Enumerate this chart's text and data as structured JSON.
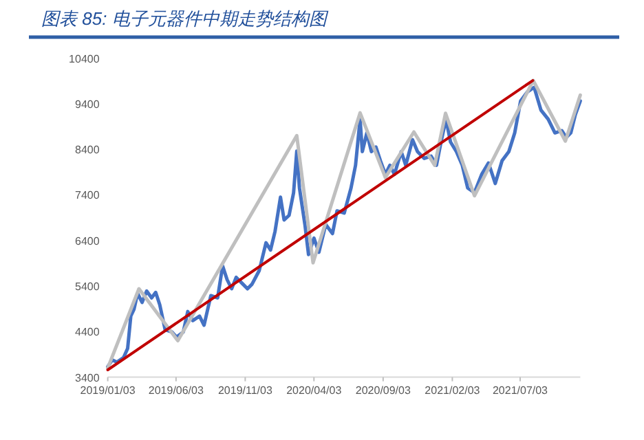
{
  "chart_data": {
    "type": "line",
    "title": "图表 85:  电子元器件中期走势结构图",
    "xlim": [
      "2019-01-03",
      "2021-11-13"
    ],
    "xticks": [
      {
        "value": "2019-01-03",
        "label": "2019/01/03"
      },
      {
        "value": "2019-06-03",
        "label": "2019/06/03"
      },
      {
        "value": "2019-11-03",
        "label": "2019/11/03"
      },
      {
        "value": "2020-04-03",
        "label": "2020/04/03"
      },
      {
        "value": "2020-09-03",
        "label": "2020/09/03"
      },
      {
        "value": "2021-02-03",
        "label": "2021/02/03"
      },
      {
        "value": "2021-07-03",
        "label": "2021/07/03"
      }
    ],
    "ylim": [
      3400,
      10400
    ],
    "yticks": [
      3400,
      4400,
      5400,
      6400,
      7400,
      8400,
      9400,
      10400
    ],
    "marker": "none",
    "line_style": "solid",
    "series": [
      {
        "color": "#4472c4",
        "x": [
          "2019-01-03",
          "2019-01-13",
          "2019-01-23",
          "2019-02-07",
          "2019-02-16",
          "2019-02-23",
          "2019-03-02",
          "2019-03-10",
          "2019-03-20",
          "2019-03-30",
          "2019-04-10",
          "2019-04-19",
          "2019-04-28",
          "2019-05-10",
          "2019-05-25",
          "2019-06-04",
          "2019-06-19",
          "2019-06-29",
          "2019-07-10",
          "2019-07-25",
          "2019-08-04",
          "2019-08-19",
          "2019-09-03",
          "2019-09-14",
          "2019-09-24",
          "2019-10-04",
          "2019-10-14",
          "2019-10-29",
          "2019-11-08",
          "2019-11-18",
          "2019-12-04",
          "2019-12-19",
          "2019-12-29",
          "2020-01-08",
          "2020-01-20",
          "2020-01-28",
          "2020-02-08",
          "2020-02-18",
          "2020-02-25",
          "2020-03-02",
          "2020-03-14",
          "2020-03-22",
          "2020-04-03",
          "2020-04-14",
          "2020-04-29",
          "2020-05-14",
          "2020-05-24",
          "2020-06-09",
          "2020-06-13",
          "2020-06-24",
          "2020-07-04",
          "2020-07-14",
          "2020-07-19",
          "2020-07-29",
          "2020-08-08",
          "2020-08-18",
          "2020-08-28",
          "2020-09-08",
          "2020-09-18",
          "2020-09-28",
          "2020-10-13",
          "2020-10-23",
          "2020-11-07",
          "2020-11-18",
          "2020-12-03",
          "2020-12-18",
          "2020-12-30",
          "2021-01-09",
          "2021-01-20",
          "2021-01-30",
          "2021-02-12",
          "2021-02-25",
          "2021-03-09",
          "2021-03-24",
          "2021-04-09",
          "2021-04-24",
          "2021-05-09",
          "2021-05-24",
          "2021-06-08",
          "2021-06-21",
          "2021-07-04",
          "2021-07-19",
          "2021-08-03",
          "2021-08-18",
          "2021-09-03",
          "2021-09-18",
          "2021-10-03",
          "2021-10-13",
          "2021-10-23",
          "2021-11-02",
          "2021-11-13"
        ],
        "values": [
          3630,
          3780,
          3730,
          3830,
          4030,
          4740,
          4890,
          5240,
          5040,
          5290,
          5140,
          5260,
          4990,
          4440,
          4390,
          4280,
          4390,
          4840,
          4640,
          4740,
          4540,
          5190,
          5140,
          5840,
          5540,
          5340,
          5590,
          5440,
          5340,
          5440,
          5740,
          6350,
          6190,
          6600,
          7350,
          6850,
          6950,
          7450,
          8360,
          7550,
          6750,
          6090,
          6450,
          6140,
          6750,
          6550,
          7050,
          7000,
          7150,
          7550,
          8050,
          9060,
          8350,
          8760,
          8350,
          8450,
          8150,
          7850,
          8050,
          7850,
          8350,
          8050,
          8610,
          8350,
          8200,
          8250,
          8050,
          8560,
          9060,
          8560,
          8350,
          8050,
          7550,
          7450,
          7850,
          8100,
          7650,
          8150,
          8350,
          8760,
          9460,
          9660,
          9760,
          9260,
          9060,
          8760,
          8810,
          8660,
          8760,
          9160,
          9460
        ]
      },
      {
        "color": "#bfbfbf",
        "x": [
          "2019-01-03",
          "2019-03-13",
          "2019-06-07",
          "2020-02-25",
          "2020-04-01",
          "2020-07-14",
          "2020-09-08",
          "2020-11-10",
          "2020-12-26",
          "2021-01-19",
          "2021-03-24",
          "2021-08-01",
          "2021-10-11",
          "2021-11-13"
        ],
        "values": [
          3600,
          5340,
          4200,
          8700,
          5910,
          9200,
          7780,
          8780,
          8050,
          9190,
          7380,
          9910,
          8580,
          9590
        ]
      },
      {
        "color": "#c00000",
        "x": [
          "2019-01-03",
          "2021-07-31"
        ],
        "values": [
          3560,
          9910
        ]
      }
    ]
  }
}
